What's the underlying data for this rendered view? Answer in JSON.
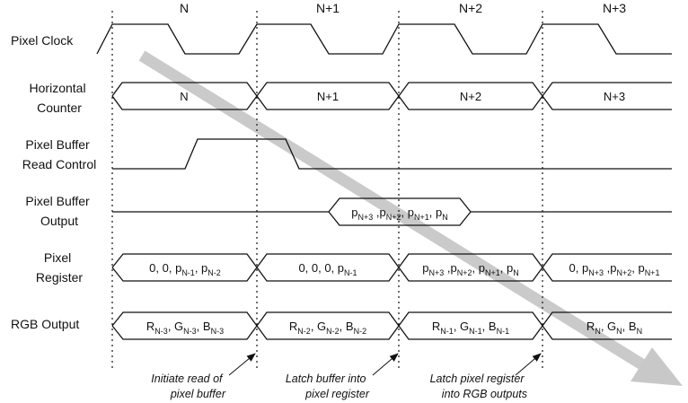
{
  "cycles": [
    "N",
    "N+1",
    "N+2",
    "N+3"
  ],
  "signals": {
    "pixel_clock": [
      "Pixel Clock"
    ],
    "horizontal_counter": [
      "Horizontal",
      "Counter"
    ],
    "read_control": [
      "Pixel Buffer",
      "Read Control"
    ],
    "buffer_output": [
      "Pixel Buffer",
      "Output"
    ],
    "pixel_register": [
      "Pixel",
      "Register"
    ],
    "rgb_output": [
      "RGB Output"
    ]
  },
  "counter_values": [
    "N",
    "N+1",
    "N+2",
    "N+3"
  ],
  "buffer_output_value": [
    {
      "t": "p"
    },
    {
      "t": "N+3",
      "sub": true
    },
    {
      "t": " ,p"
    },
    {
      "t": "N+2",
      "sub": true
    },
    {
      "t": ", p"
    },
    {
      "t": "N+1",
      "sub": true
    },
    {
      "t": ", p"
    },
    {
      "t": "N",
      "sub": true
    }
  ],
  "register_values": [
    [
      {
        "t": "0, 0, p"
      },
      {
        "t": "N-1",
        "sub": true
      },
      {
        "t": ", p"
      },
      {
        "t": "N-2",
        "sub": true
      }
    ],
    [
      {
        "t": "0, 0, 0, p"
      },
      {
        "t": "N-1",
        "sub": true
      }
    ],
    [
      {
        "t": "p"
      },
      {
        "t": "N+3",
        "sub": true
      },
      {
        "t": " ,p"
      },
      {
        "t": "N+2",
        "sub": true
      },
      {
        "t": ", p"
      },
      {
        "t": "N+1",
        "sub": true
      },
      {
        "t": ", p"
      },
      {
        "t": "N",
        "sub": true
      }
    ],
    [
      {
        "t": "0, p"
      },
      {
        "t": "N+3",
        "sub": true
      },
      {
        "t": " ,p"
      },
      {
        "t": "N+2",
        "sub": true
      },
      {
        "t": ", p"
      },
      {
        "t": "N+1",
        "sub": true
      }
    ]
  ],
  "rgb_values": [
    [
      {
        "t": "R"
      },
      {
        "t": "N-3",
        "sub": true
      },
      {
        "t": ", G"
      },
      {
        "t": "N-3",
        "sub": true
      },
      {
        "t": ", B"
      },
      {
        "t": "N-3",
        "sub": true
      }
    ],
    [
      {
        "t": "R"
      },
      {
        "t": "N-2",
        "sub": true
      },
      {
        "t": ", G"
      },
      {
        "t": "N-2",
        "sub": true
      },
      {
        "t": ", B"
      },
      {
        "t": "N-2",
        "sub": true
      }
    ],
    [
      {
        "t": "R"
      },
      {
        "t": "N-1",
        "sub": true
      },
      {
        "t": ", G"
      },
      {
        "t": "N-1",
        "sub": true
      },
      {
        "t": ", B"
      },
      {
        "t": "N-1",
        "sub": true
      }
    ],
    [
      {
        "t": "R"
      },
      {
        "t": "N",
        "sub": true
      },
      {
        "t": ", G"
      },
      {
        "t": "N",
        "sub": true
      },
      {
        "t": ", B"
      },
      {
        "t": "N",
        "sub": true
      }
    ]
  ],
  "annotations": [
    [
      "Initiate read of",
      "pixel buffer"
    ],
    [
      "Latch buffer into",
      "pixel register"
    ],
    [
      "Latch pixel register",
      "into RGB outputs"
    ]
  ],
  "colors": {
    "line": "#111111",
    "flow_arrow": "#c8c8c8",
    "background": "#ffffff"
  }
}
